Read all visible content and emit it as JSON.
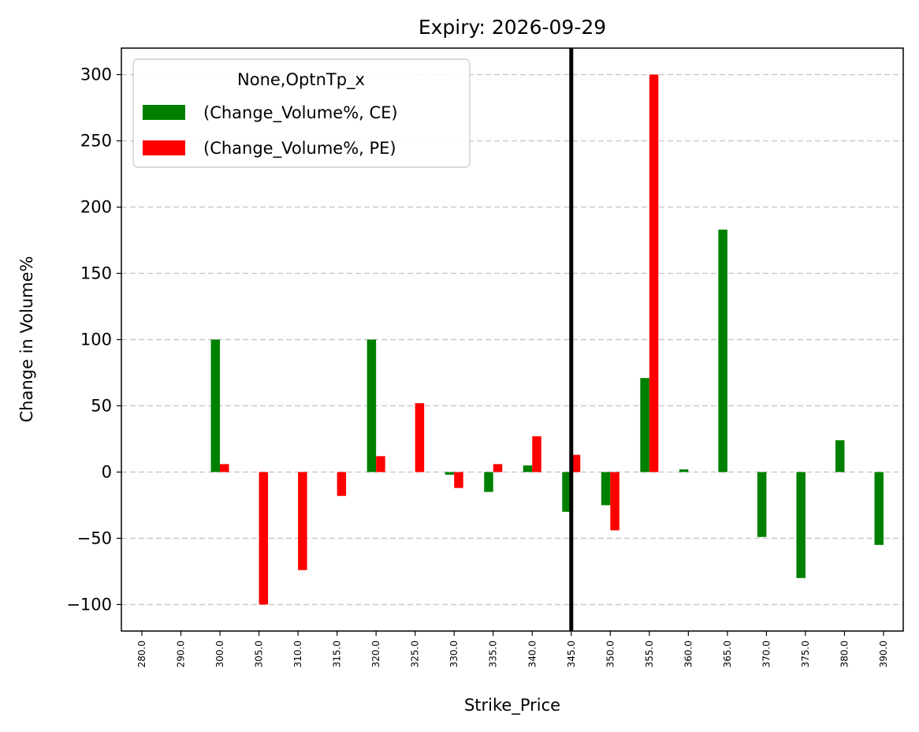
{
  "chart_data": {
    "type": "bar",
    "title": "Expiry: 2026-09-29",
    "xlabel": "Strike_Price",
    "ylabel": "Change in Volume%",
    "categories": [
      "280.0",
      "290.0",
      "300.0",
      "305.0",
      "310.0",
      "315.0",
      "320.0",
      "325.0",
      "330.0",
      "335.0",
      "340.0",
      "345.0",
      "350.0",
      "355.0",
      "360.0",
      "365.0",
      "370.0",
      "375.0",
      "380.0",
      "390.0"
    ],
    "series": [
      {
        "name": "(Change_Volume%, CE)",
        "color": "#008000",
        "values": [
          null,
          null,
          100,
          null,
          null,
          null,
          100,
          null,
          -2,
          -15,
          5,
          -30,
          -25,
          71,
          2,
          183,
          -49,
          -80,
          24,
          -55
        ]
      },
      {
        "name": "(Change_Volume%, PE)",
        "color": "#ff0000",
        "values": [
          null,
          null,
          6,
          -100,
          -74,
          -18,
          12,
          52,
          -12,
          6,
          27,
          13,
          -44,
          300,
          null,
          null,
          null,
          null,
          null,
          null
        ]
      }
    ],
    "yticks": [
      -100,
      -50,
      0,
      50,
      100,
      150,
      200,
      250,
      300
    ],
    "ytick_labels": [
      "−100",
      "−50",
      "0",
      "50",
      "100",
      "150",
      "200",
      "250",
      "300"
    ],
    "ylim": [
      -120,
      320
    ],
    "grid": "y-dashed",
    "legend": {
      "title": "None,OptnTp_x",
      "placement": "top-left"
    },
    "vline": {
      "category": "345.0",
      "color": "#000000"
    }
  }
}
